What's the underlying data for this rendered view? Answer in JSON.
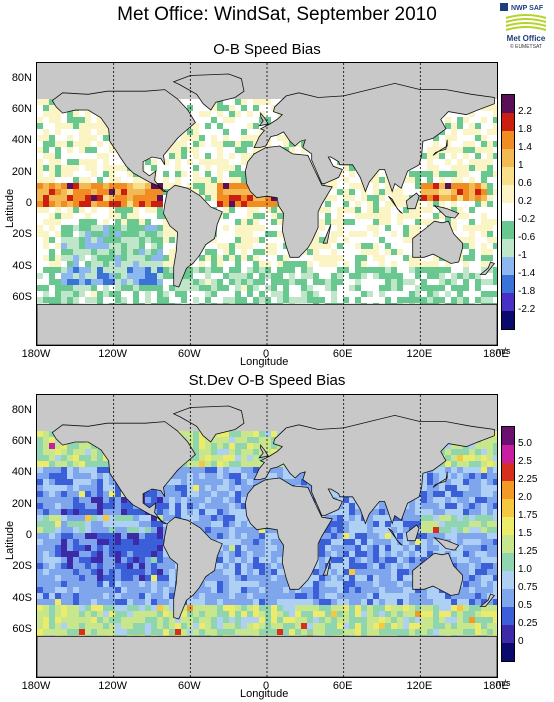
{
  "title": "Met Office: WindSat, September 2010",
  "logo": {
    "nwp": "NWP SAF",
    "org": "Met Office",
    "copyright": "© EUMETSAT"
  },
  "ylabel": "Latitude",
  "xlabel": "Longitude",
  "unit": "m/s",
  "lat_ticks": [
    "80N",
    "60N",
    "40N",
    "20N",
    "0",
    "20S",
    "40S",
    "60S"
  ],
  "lon_ticks": [
    "180W",
    "120W",
    "60W",
    "0",
    "60E",
    "120E",
    "180E"
  ],
  "colors": {
    "land": "#c8c8c8",
    "bias_scale": [
      "#0a0a6e",
      "#4a2ec8",
      "#3a72d8",
      "#8cb8ef",
      "#bfe6c8",
      "#68c890",
      "#ffffff",
      "#fbf4c4",
      "#f8e08a",
      "#f3ba54",
      "#f08c22",
      "#cc1e10",
      "#5a1058"
    ],
    "stdev_scale": [
      "#0a0a6e",
      "#3c2aa8",
      "#3b5fd8",
      "#7fa6ec",
      "#aed0f4",
      "#8fd6b0",
      "#c8e68c",
      "#ecec6a",
      "#f6c840",
      "#f29a24",
      "#d82e1e",
      "#c81ea0",
      "#6a1070"
    ]
  },
  "chart_data": [
    {
      "type": "heatmap",
      "title": "O-B Speed Bias",
      "xlabel": "Longitude",
      "ylabel": "Latitude",
      "xlim": [
        -180,
        180
      ],
      "ylim": [
        -90,
        90
      ],
      "colorbar_labels": [
        "2.2",
        "1.8",
        "1.4",
        "1",
        "0.6",
        "0.2",
        "-0.2",
        "-0.6",
        "-1",
        "-1.4",
        "-1.8",
        "-2.2"
      ],
      "colorbar_unit": "m/s"
    },
    {
      "type": "heatmap",
      "title": "St.Dev O-B Speed Bias",
      "xlabel": "Longitude",
      "ylabel": "Latitude",
      "xlim": [
        -180,
        180
      ],
      "ylim": [
        -90,
        90
      ],
      "colorbar_labels": [
        "5.0",
        "2.5",
        "2.25",
        "2.0",
        "1.75",
        "1.5",
        "1.25",
        "1.0",
        "0.75",
        "0.5",
        "0.25",
        "0"
      ],
      "colorbar_unit": "m/s"
    }
  ]
}
